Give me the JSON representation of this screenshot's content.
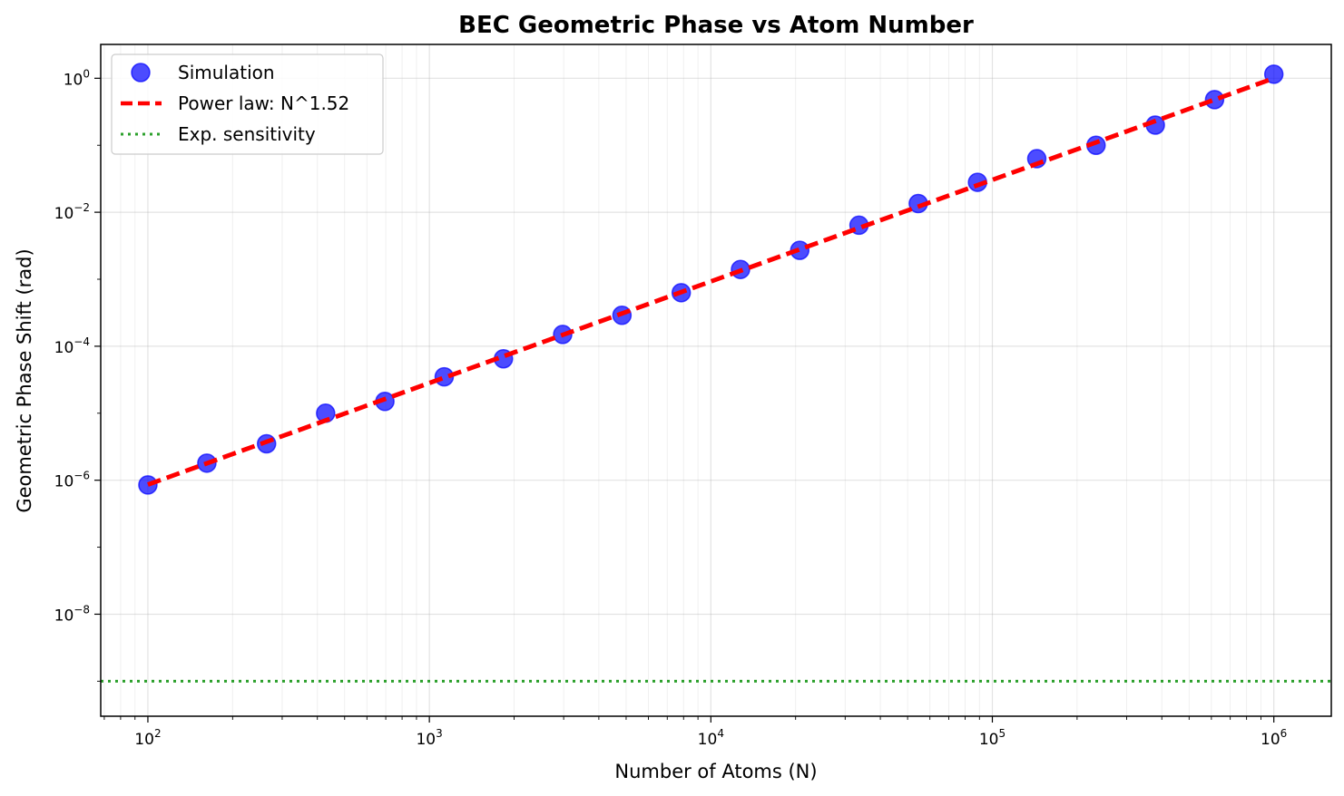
{
  "chart_data": {
    "type": "scatter",
    "title": "BEC Geometric Phase vs Atom Number",
    "xlabel": "Number of Atoms (N)",
    "ylabel": "Geometric Phase Shift (rad)",
    "xscale": "log",
    "yscale": "log",
    "xlim": [
      68,
      1600000
    ],
    "ylim": [
      3e-10,
      3.2
    ],
    "x_ticks": [
      {
        "base": "10",
        "exp": "2",
        "value": 100
      },
      {
        "base": "10",
        "exp": "3",
        "value": 1000
      },
      {
        "base": "10",
        "exp": "4",
        "value": 10000
      },
      {
        "base": "10",
        "exp": "5",
        "value": 100000
      },
      {
        "base": "10",
        "exp": "6",
        "value": 1000000
      }
    ],
    "y_ticks": [
      {
        "base": "10",
        "exp": "−8",
        "value": 1e-08
      },
      {
        "base": "10",
        "exp": "−6",
        "value": 1e-06
      },
      {
        "base": "10",
        "exp": "−4",
        "value": 0.0001
      },
      {
        "base": "10",
        "exp": "−2",
        "value": 0.01
      },
      {
        "base": "10",
        "exp": "0",
        "value": 1
      }
    ],
    "grid": true,
    "legend_position": "top-left",
    "series": [
      {
        "name": "Simulation",
        "kind": "scatter",
        "color": "#0000ff",
        "x": [
          100,
          162,
          264,
          428,
          695,
          1129,
          1833,
          2976,
          4833,
          7848,
          12743,
          20691,
          33598,
          54556,
          88587,
          143845,
          233572,
          379269,
          615848,
          1000000
        ],
        "y": [
          8.5e-07,
          1.8e-06,
          3.5e-06,
          1e-05,
          1.5e-05,
          3.5e-05,
          6.5e-05,
          0.00015,
          0.00029,
          0.00063,
          0.0014,
          0.0027,
          0.0064,
          0.0135,
          0.028,
          0.063,
          0.1,
          0.2,
          0.48,
          1.15
        ]
      },
      {
        "name": "Power law: N^1.52",
        "kind": "line",
        "style": "dashed",
        "color": "#ff0000",
        "x": [
          100,
          1000000
        ],
        "y": [
          8.6e-07,
          1.0
        ]
      },
      {
        "name": "Exp. sensitivity",
        "kind": "hline",
        "style": "dotted",
        "color": "#2ca02c",
        "y": 1e-09
      }
    ]
  }
}
